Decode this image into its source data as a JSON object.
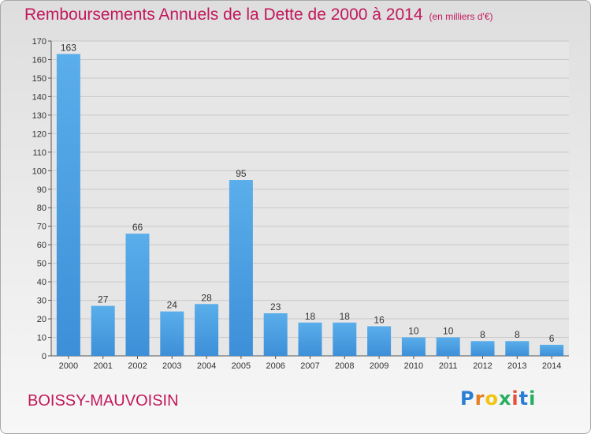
{
  "chart_data": {
    "type": "bar",
    "title": "Remboursements Annuels de la Dette de 2000 à 2014",
    "unit": "(en milliers d'€)",
    "categories": [
      "2000",
      "2001",
      "2002",
      "2003",
      "2004",
      "2005",
      "2006",
      "2007",
      "2008",
      "2009",
      "2010",
      "2011",
      "2012",
      "2013",
      "2014"
    ],
    "values": [
      163,
      27,
      66,
      24,
      28,
      95,
      23,
      18,
      18,
      16,
      10,
      10,
      8,
      8,
      6
    ],
    "ylim": [
      0,
      170
    ],
    "yticks": [
      0,
      10,
      20,
      30,
      40,
      50,
      60,
      70,
      80,
      90,
      100,
      110,
      120,
      130,
      140,
      150,
      160,
      170
    ],
    "grid": true,
    "bar_color": "#3d8fd8"
  },
  "commune": "BOISSY-MAUVOISIN",
  "logo": {
    "letters": [
      "P",
      "r",
      "o",
      "x",
      "i",
      "t",
      "i"
    ],
    "colors": [
      "#2a7fd4",
      "#e67e22",
      "#f1c40f",
      "#27ae60",
      "#e74c3c",
      "#2a7fd4",
      "#27ae60"
    ]
  }
}
